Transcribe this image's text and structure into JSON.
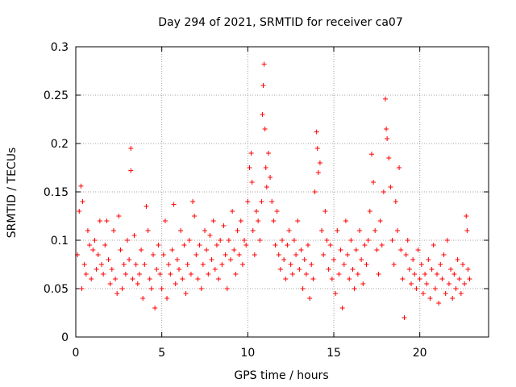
{
  "chart_data": {
    "type": "scatter",
    "title": "Day 294 of 2021, SRMTID for receiver ca07",
    "xlabel": "GPS time / hours",
    "ylabel": "SRMTID / TECUs",
    "xlim": [
      0,
      24
    ],
    "ylim": [
      0,
      0.3
    ],
    "xticks": [
      0,
      5,
      10,
      15,
      20
    ],
    "yticks": [
      0,
      0.05,
      0.1,
      0.15,
      0.2,
      0.25,
      0.3
    ],
    "xtick_labels": [
      "0",
      "5",
      "10",
      "15",
      "20"
    ],
    "ytick_labels": [
      "0",
      "0.05",
      "0.1",
      "0.15",
      "0.2",
      "0.25",
      "0.3"
    ],
    "grid": true,
    "marker": "+",
    "series": [
      {
        "name": "SRMTID",
        "color": "#ff0000",
        "points": [
          [
            0.1,
            0.085
          ],
          [
            0.2,
            0.13
          ],
          [
            0.3,
            0.156
          ],
          [
            0.35,
            0.05
          ],
          [
            0.4,
            0.14
          ],
          [
            0.5,
            0.075
          ],
          [
            0.6,
            0.065
          ],
          [
            0.7,
            0.11
          ],
          [
            0.8,
            0.095
          ],
          [
            0.9,
            0.06
          ],
          [
            1.0,
            0.09
          ],
          [
            1.1,
            0.1
          ],
          [
            1.2,
            0.07
          ],
          [
            1.3,
            0.085
          ],
          [
            1.4,
            0.12
          ],
          [
            1.5,
            0.075
          ],
          [
            1.6,
            0.065
          ],
          [
            1.7,
            0.095
          ],
          [
            1.8,
            0.12
          ],
          [
            1.9,
            0.08
          ],
          [
            2.0,
            0.055
          ],
          [
            2.1,
            0.07
          ],
          [
            2.2,
            0.11
          ],
          [
            2.3,
            0.06
          ],
          [
            2.4,
            0.045
          ],
          [
            2.5,
            0.125
          ],
          [
            2.6,
            0.09
          ],
          [
            2.7,
            0.05
          ],
          [
            2.8,
            0.075
          ],
          [
            2.9,
            0.065
          ],
          [
            3.0,
            0.1
          ],
          [
            3.1,
            0.08
          ],
          [
            3.2,
            0.195
          ],
          [
            3.2,
            0.172
          ],
          [
            3.3,
            0.06
          ],
          [
            3.4,
            0.105
          ],
          [
            3.5,
            0.075
          ],
          [
            3.6,
            0.055
          ],
          [
            3.7,
            0.065
          ],
          [
            3.8,
            0.09
          ],
          [
            3.9,
            0.04
          ],
          [
            4.0,
            0.075
          ],
          [
            4.1,
            0.135
          ],
          [
            4.2,
            0.11
          ],
          [
            4.3,
            0.06
          ],
          [
            4.4,
            0.05
          ],
          [
            4.5,
            0.085
          ],
          [
            4.6,
            0.03
          ],
          [
            4.7,
            0.07
          ],
          [
            4.8,
            0.095
          ],
          [
            4.9,
            0.065
          ],
          [
            5.0,
            0.05
          ],
          [
            5.1,
            0.085
          ],
          [
            5.2,
            0.12
          ],
          [
            5.3,
            0.04
          ],
          [
            5.4,
            0.075
          ],
          [
            5.5,
            0.065
          ],
          [
            5.6,
            0.09
          ],
          [
            5.7,
            0.137
          ],
          [
            5.8,
            0.055
          ],
          [
            5.9,
            0.08
          ],
          [
            6.0,
            0.07
          ],
          [
            6.1,
            0.11
          ],
          [
            6.2,
            0.06
          ],
          [
            6.3,
            0.095
          ],
          [
            6.4,
            0.045
          ],
          [
            6.5,
            0.075
          ],
          [
            6.6,
            0.1
          ],
          [
            6.7,
            0.065
          ],
          [
            6.8,
            0.14
          ],
          [
            6.9,
            0.125
          ],
          [
            7.0,
            0.085
          ],
          [
            7.1,
            0.06
          ],
          [
            7.2,
            0.095
          ],
          [
            7.3,
            0.05
          ],
          [
            7.4,
            0.075
          ],
          [
            7.5,
            0.11
          ],
          [
            7.6,
            0.09
          ],
          [
            7.7,
            0.065
          ],
          [
            7.8,
            0.105
          ],
          [
            7.9,
            0.08
          ],
          [
            8.0,
            0.12
          ],
          [
            8.1,
            0.07
          ],
          [
            8.2,
            0.095
          ],
          [
            8.3,
            0.06
          ],
          [
            8.4,
            0.1
          ],
          [
            8.5,
            0.075
          ],
          [
            8.6,
            0.115
          ],
          [
            8.7,
            0.085
          ],
          [
            8.8,
            0.05
          ],
          [
            8.9,
            0.1
          ],
          [
            9.0,
            0.08
          ],
          [
            9.1,
            0.13
          ],
          [
            9.2,
            0.09
          ],
          [
            9.3,
            0.065
          ],
          [
            9.4,
            0.11
          ],
          [
            9.5,
            0.085
          ],
          [
            9.6,
            0.12
          ],
          [
            9.7,
            0.075
          ],
          [
            9.8,
            0.1
          ],
          [
            9.9,
            0.095
          ],
          [
            10.0,
            0.14
          ],
          [
            10.1,
            0.175
          ],
          [
            10.2,
            0.19
          ],
          [
            10.25,
            0.16
          ],
          [
            10.3,
            0.11
          ],
          [
            10.4,
            0.085
          ],
          [
            10.5,
            0.13
          ],
          [
            10.6,
            0.12
          ],
          [
            10.7,
            0.1
          ],
          [
            10.8,
            0.14
          ],
          [
            10.85,
            0.23
          ],
          [
            10.9,
            0.26
          ],
          [
            10.95,
            0.282
          ],
          [
            11.0,
            0.215
          ],
          [
            11.05,
            0.175
          ],
          [
            11.1,
            0.155
          ],
          [
            11.2,
            0.19
          ],
          [
            11.3,
            0.165
          ],
          [
            11.4,
            0.14
          ],
          [
            11.5,
            0.12
          ],
          [
            11.6,
            0.095
          ],
          [
            11.7,
            0.13
          ],
          [
            11.8,
            0.085
          ],
          [
            11.9,
            0.07
          ],
          [
            12.0,
            0.1
          ],
          [
            12.1,
            0.08
          ],
          [
            12.2,
            0.06
          ],
          [
            12.3,
            0.095
          ],
          [
            12.4,
            0.11
          ],
          [
            12.5,
            0.075
          ],
          [
            12.6,
            0.065
          ],
          [
            12.7,
            0.1
          ],
          [
            12.8,
            0.085
          ],
          [
            12.9,
            0.12
          ],
          [
            13.0,
            0.07
          ],
          [
            13.1,
            0.09
          ],
          [
            13.2,
            0.05
          ],
          [
            13.3,
            0.08
          ],
          [
            13.4,
            0.065
          ],
          [
            13.5,
            0.095
          ],
          [
            13.6,
            0.04
          ],
          [
            13.7,
            0.075
          ],
          [
            13.8,
            0.06
          ],
          [
            13.9,
            0.15
          ],
          [
            14.0,
            0.212
          ],
          [
            14.05,
            0.195
          ],
          [
            14.1,
            0.17
          ],
          [
            14.2,
            0.18
          ],
          [
            14.3,
            0.11
          ],
          [
            14.4,
            0.085
          ],
          [
            14.5,
            0.13
          ],
          [
            14.6,
            0.1
          ],
          [
            14.7,
            0.07
          ],
          [
            14.8,
            0.095
          ],
          [
            14.9,
            0.06
          ],
          [
            15.0,
            0.08
          ],
          [
            15.1,
            0.045
          ],
          [
            15.2,
            0.11
          ],
          [
            15.3,
            0.065
          ],
          [
            15.4,
            0.09
          ],
          [
            15.5,
            0.03
          ],
          [
            15.6,
            0.075
          ],
          [
            15.7,
            0.12
          ],
          [
            15.8,
            0.085
          ],
          [
            15.9,
            0.06
          ],
          [
            16.0,
            0.1
          ],
          [
            16.1,
            0.07
          ],
          [
            16.2,
            0.05
          ],
          [
            16.3,
            0.09
          ],
          [
            16.4,
            0.065
          ],
          [
            16.5,
            0.11
          ],
          [
            16.6,
            0.08
          ],
          [
            16.7,
            0.055
          ],
          [
            16.8,
            0.095
          ],
          [
            16.9,
            0.075
          ],
          [
            17.0,
            0.1
          ],
          [
            17.1,
            0.13
          ],
          [
            17.2,
            0.189
          ],
          [
            17.3,
            0.16
          ],
          [
            17.4,
            0.11
          ],
          [
            17.5,
            0.09
          ],
          [
            17.6,
            0.065
          ],
          [
            17.7,
            0.12
          ],
          [
            17.8,
            0.095
          ],
          [
            17.9,
            0.15
          ],
          [
            18.0,
            0.246
          ],
          [
            18.05,
            0.215
          ],
          [
            18.1,
            0.205
          ],
          [
            18.2,
            0.185
          ],
          [
            18.3,
            0.155
          ],
          [
            18.4,
            0.1
          ],
          [
            18.5,
            0.075
          ],
          [
            18.6,
            0.14
          ],
          [
            18.7,
            0.11
          ],
          [
            18.8,
            0.175
          ],
          [
            18.9,
            0.09
          ],
          [
            19.0,
            0.06
          ],
          [
            19.1,
            0.02
          ],
          [
            19.2,
            0.085
          ],
          [
            19.3,
            0.1
          ],
          [
            19.4,
            0.07
          ],
          [
            19.5,
            0.055
          ],
          [
            19.6,
            0.08
          ],
          [
            19.7,
            0.065
          ],
          [
            19.8,
            0.05
          ],
          [
            19.9,
            0.09
          ],
          [
            20.0,
            0.06
          ],
          [
            20.1,
            0.075
          ],
          [
            20.2,
            0.045
          ],
          [
            20.3,
            0.065
          ],
          [
            20.4,
            0.055
          ],
          [
            20.5,
            0.08
          ],
          [
            20.6,
            0.04
          ],
          [
            20.7,
            0.07
          ],
          [
            20.8,
            0.095
          ],
          [
            20.9,
            0.05
          ],
          [
            21.0,
            0.065
          ],
          [
            21.1,
            0.035
          ],
          [
            21.2,
            0.075
          ],
          [
            21.3,
            0.06
          ],
          [
            21.4,
            0.085
          ],
          [
            21.5,
            0.045
          ],
          [
            21.6,
            0.1
          ],
          [
            21.7,
            0.055
          ],
          [
            21.8,
            0.07
          ],
          [
            21.9,
            0.04
          ],
          [
            22.0,
            0.065
          ],
          [
            22.1,
            0.05
          ],
          [
            22.2,
            0.08
          ],
          [
            22.3,
            0.06
          ],
          [
            22.4,
            0.045
          ],
          [
            22.5,
            0.075
          ],
          [
            22.6,
            0.055
          ],
          [
            22.7,
            0.125
          ],
          [
            22.75,
            0.11
          ],
          [
            22.8,
            0.07
          ],
          [
            22.9,
            0.06
          ]
        ]
      }
    ]
  }
}
